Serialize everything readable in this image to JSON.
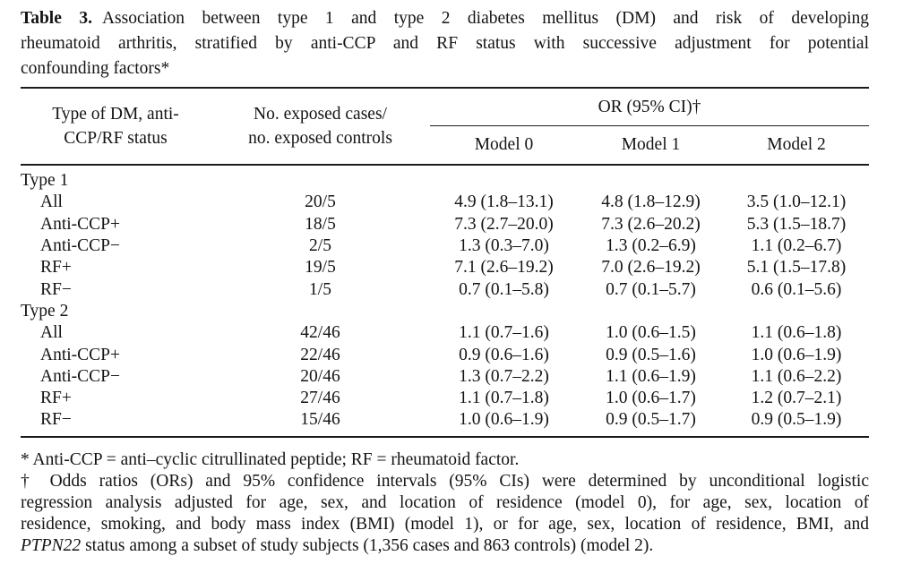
{
  "page": {
    "background": "#ffffff",
    "text_color": "#141414",
    "rule_color": "#1c1c1c"
  },
  "caption": {
    "bold_label": "Table 3.",
    "line1_rest": "Association between type 1 and type 2 diabetes mellitus (DM) and risk of developing",
    "line2": "rheumatoid arthritis, stratified by anti-CCP and RF status with successive adjustment for potential",
    "line3": "confounding factors*"
  },
  "table": {
    "header": {
      "col1_line1": "Type of DM, anti-",
      "col1_line2": "CCP/RF status",
      "col2_line1": "No. exposed cases/",
      "col2_line2": "no. exposed controls",
      "or_span": "OR (95% CI)†",
      "models": [
        "Model 0",
        "Model 1",
        "Model 2"
      ]
    },
    "rows": [
      {
        "label": "Type 1",
        "section": true,
        "exposed": "",
        "m0": "",
        "m1": "",
        "m2": ""
      },
      {
        "label": "All",
        "section": false,
        "exposed": "20/5",
        "m0": "4.9 (1.8–13.1)",
        "m1": "4.8 (1.8–12.9)",
        "m2": "3.5 (1.0–12.1)"
      },
      {
        "label": "Anti-CCP+",
        "section": false,
        "exposed": "18/5",
        "m0": "7.3 (2.7–20.0)",
        "m1": "7.3 (2.6–20.2)",
        "m2": "5.3 (1.5–18.7)"
      },
      {
        "label": "Anti-CCP−",
        "section": false,
        "exposed": "2/5",
        "m0": "1.3 (0.3–7.0)",
        "m1": "1.3 (0.2–6.9)",
        "m2": "1.1 (0.2–6.7)"
      },
      {
        "label": "RF+",
        "section": false,
        "exposed": "19/5",
        "m0": "7.1 (2.6–19.2)",
        "m1": "7.0 (2.6–19.2)",
        "m2": "5.1 (1.5–17.8)"
      },
      {
        "label": "RF−",
        "section": false,
        "exposed": "1/5",
        "m0": "0.7 (0.1–5.8)",
        "m1": "0.7 (0.1–5.7)",
        "m2": "0.6 (0.1–5.6)"
      },
      {
        "label": "Type 2",
        "section": true,
        "exposed": "",
        "m0": "",
        "m1": "",
        "m2": ""
      },
      {
        "label": "All",
        "section": false,
        "exposed": "42/46",
        "m0": "1.1 (0.7–1.6)",
        "m1": "1.0 (0.6–1.5)",
        "m2": "1.1 (0.6–1.8)"
      },
      {
        "label": "Anti-CCP+",
        "section": false,
        "exposed": "22/46",
        "m0": "0.9 (0.6–1.6)",
        "m1": "0.9 (0.5–1.6)",
        "m2": "1.0 (0.6–1.9)"
      },
      {
        "label": "Anti-CCP−",
        "section": false,
        "exposed": "20/46",
        "m0": "1.3 (0.7–2.2)",
        "m1": "1.1 (0.6–1.9)",
        "m2": "1.1 (0.6–2.2)"
      },
      {
        "label": "RF+",
        "section": false,
        "exposed": "27/46",
        "m0": "1.1 (0.7–1.8)",
        "m1": "1.0 (0.6–1.7)",
        "m2": "1.2 (0.7–2.1)"
      },
      {
        "label": "RF−",
        "section": false,
        "exposed": "15/46",
        "m0": "1.0 (0.6–1.9)",
        "m1": "0.9 (0.5–1.7)",
        "m2": "0.9 (0.5–1.9)"
      }
    ]
  },
  "footnotes": {
    "line_asterisk": "* Anti-CCP = anti–cyclic citrullinated peptide; RF = rheumatoid factor.",
    "dagger_line1": "† Odds ratios (ORs) and 95% confidence intervals (95% CIs) were determined by unconditional logistic",
    "dagger_line2": "regression analysis adjusted for age, sex, and location of residence (model 0), for age, sex, location of",
    "dagger_line3": "residence, smoking, and body mass index (BMI) (model 1), or for age, sex, location of residence, BMI, and",
    "dagger_line4_italic": "PTPN22",
    "dagger_line4_rest": " status among a subset of study subjects (1,356 cases and 863 controls) (model 2)."
  }
}
